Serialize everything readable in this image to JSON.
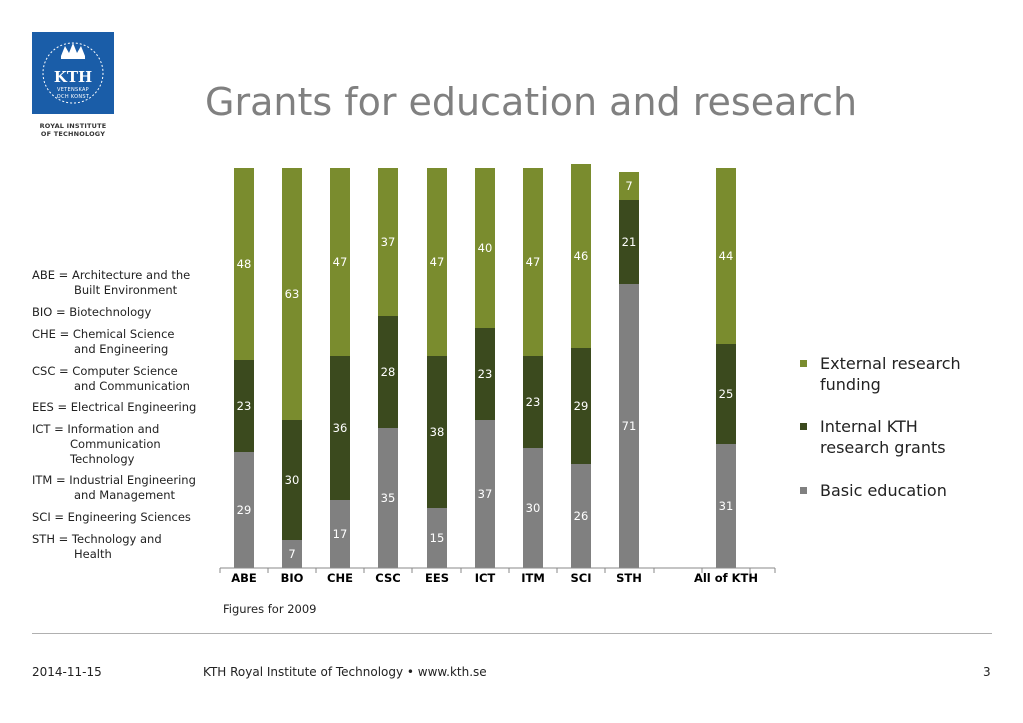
{
  "header": {
    "logo_main": "KTH",
    "logo_line1": "VETENSKAP",
    "logo_line2": "OCH KONST",
    "org_line1": "ROYAL INSTITUTE",
    "org_line2": "OF TECHNOLOGY",
    "title": "Grants for education and research"
  },
  "abbreviations": [
    {
      "line1": "ABE = Architecture and the",
      "line2": "Built Environment"
    },
    {
      "line1": "BIO = Biotechnology",
      "line2": ""
    },
    {
      "line1": "CHE = Chemical Science",
      "line2": "and Engineering"
    },
    {
      "line1": "CSC = Computer Science",
      "line2": "and Communication"
    },
    {
      "line1": "EES = Electrical Engineering",
      "line2": ""
    },
    {
      "line1": "ICT = Information and",
      "line2": "Communication",
      "line3": "Technology"
    },
    {
      "line1": "ITM = Industrial Engineering",
      "line2": "and Management"
    },
    {
      "line1": "SCI = Engineering Sciences",
      "line2": ""
    },
    {
      "line1": "STH = Technology and",
      "line2": "Health"
    }
  ],
  "chart_data": {
    "type": "bar",
    "stacked": true,
    "categories": [
      "ABE",
      "BIO",
      "CHE",
      "CSC",
      "EES",
      "ICT",
      "ITM",
      "SCI",
      "STH",
      "All of KTH"
    ],
    "series": [
      {
        "name": "Basic education",
        "color": "#808080",
        "values": [
          29,
          7,
          17,
          35,
          15,
          37,
          30,
          26,
          71,
          31
        ]
      },
      {
        "name": "Internal KTH research grants",
        "color": "#3b4a1e",
        "values": [
          23,
          30,
          36,
          28,
          38,
          23,
          23,
          29,
          21,
          25
        ]
      },
      {
        "name": "External research funding",
        "color": "#7a8c2e",
        "values": [
          48,
          63,
          47,
          37,
          47,
          40,
          47,
          46,
          7,
          44
        ]
      }
    ],
    "ylim": [
      0,
      100
    ],
    "grid": false,
    "legend_position": "right",
    "legend": [
      {
        "line1": "External research",
        "line2": "funding",
        "color": "#7a8c2e"
      },
      {
        "line1": "Internal KTH",
        "line2": "research grants",
        "color": "#3b4a1e"
      },
      {
        "line1": "Basic education",
        "line2": "",
        "color": "#808080"
      }
    ],
    "note": "Figures for 2009"
  },
  "footer": {
    "date": "2014-11-15",
    "center": "KTH Royal Institute of Technology • www.kth.se",
    "page": "3"
  }
}
